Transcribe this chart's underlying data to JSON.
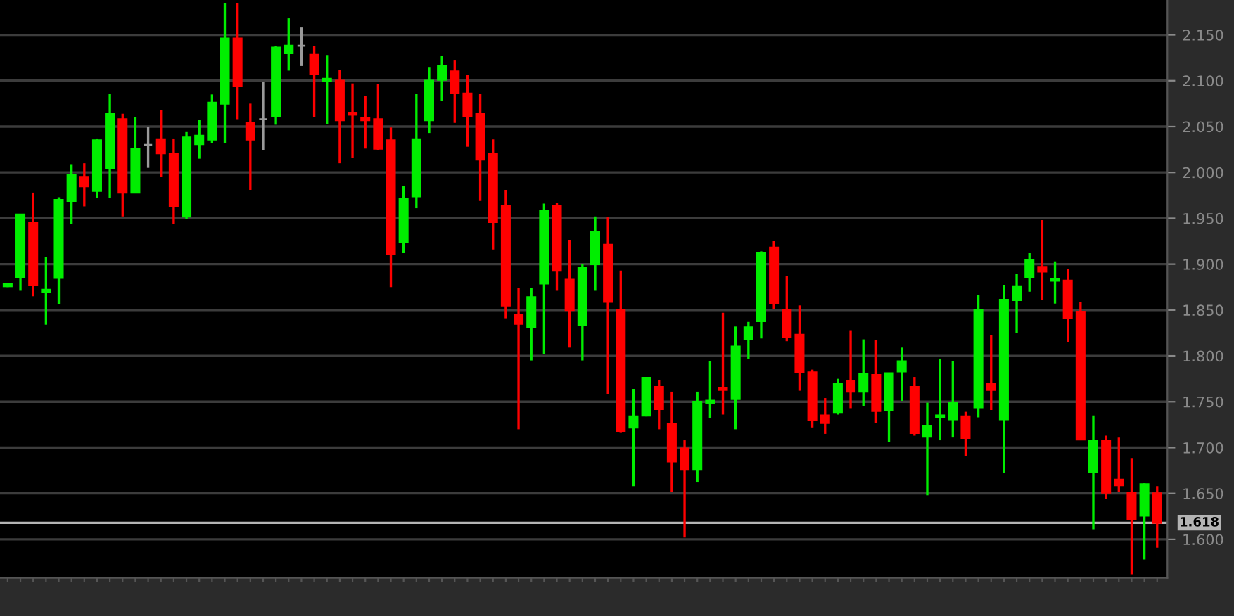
{
  "chart_data": {
    "type": "candlestick",
    "categories": [
      null,
      null,
      null,
      null,
      null,
      null,
      null,
      null,
      null,
      null,
      null,
      null,
      null,
      null,
      null,
      null,
      null,
      null,
      null,
      null,
      null,
      null,
      null,
      null,
      null,
      null,
      null,
      null,
      null,
      null,
      null,
      null,
      null,
      null,
      null,
      null,
      null,
      null,
      null,
      null,
      null,
      null,
      null,
      null,
      null,
      null,
      null,
      null,
      null,
      null,
      null,
      null,
      null,
      null,
      null,
      null,
      null,
      null,
      null,
      null,
      null,
      null,
      null,
      null,
      null,
      null,
      null,
      null,
      null,
      null,
      null,
      null,
      null,
      null,
      null,
      null,
      null,
      null,
      null,
      null,
      null,
      null,
      null,
      null,
      null,
      null,
      null,
      null,
      null,
      null,
      null
    ],
    "ohlc": [
      [
        1.876,
        1.879,
        1.875,
        1.878
      ],
      [
        1.886,
        1.954,
        1.871,
        1.954
      ],
      [
        1.945,
        1.978,
        1.865,
        1.877
      ],
      [
        1.87,
        1.908,
        1.834,
        1.872
      ],
      [
        1.885,
        1.973,
        1.856,
        1.97
      ],
      [
        1.969,
        2.009,
        1.944,
        1.997
      ],
      [
        1.995,
        2.01,
        1.963,
        1.985
      ],
      [
        1.98,
        2.037,
        1.972,
        2.035
      ],
      [
        2.005,
        2.086,
        1.972,
        2.064
      ],
      [
        2.058,
        2.064,
        1.952,
        1.978
      ],
      [
        1.978,
        2.06,
        1.978,
        2.026
      ],
      [
        2.03,
        2.05,
        2.005,
        2.03
      ],
      [
        2.036,
        2.068,
        1.995,
        2.021
      ],
      [
        2.02,
        2.037,
        1.944,
        1.963
      ],
      [
        1.952,
        2.044,
        1.949,
        2.038
      ],
      [
        2.031,
        2.057,
        2.015,
        2.04
      ],
      [
        2.036,
        2.085,
        2.032,
        2.076
      ],
      [
        2.075,
        2.185,
        2.032,
        2.146
      ],
      [
        2.146,
        2.185,
        2.058,
        2.094
      ],
      [
        2.054,
        2.075,
        1.981,
        2.036
      ],
      [
        2.058,
        2.099,
        2.024,
        2.058
      ],
      [
        2.061,
        2.138,
        2.052,
        2.136
      ],
      [
        2.13,
        2.168,
        2.111,
        2.138
      ],
      [
        2.138,
        2.158,
        2.116,
        2.138
      ],
      [
        2.128,
        2.138,
        2.06,
        2.107
      ],
      [
        2.1,
        2.128,
        2.053,
        2.102
      ],
      [
        2.1,
        2.112,
        2.01,
        2.057
      ],
      [
        2.065,
        2.097,
        2.016,
        2.063
      ],
      [
        2.059,
        2.083,
        2.026,
        2.057
      ],
      [
        2.058,
        2.096,
        2.024,
        2.026
      ],
      [
        2.035,
        2.049,
        1.875,
        1.911
      ],
      [
        1.924,
        1.985,
        1.912,
        1.971
      ],
      [
        1.974,
        2.086,
        1.961,
        2.036
      ],
      [
        2.057,
        2.115,
        2.043,
        2.1
      ],
      [
        2.101,
        2.127,
        2.078,
        2.116
      ],
      [
        2.11,
        2.122,
        2.054,
        2.087
      ],
      [
        2.086,
        2.106,
        2.028,
        2.061
      ],
      [
        2.064,
        2.086,
        1.969,
        2.014
      ],
      [
        2.02,
        2.036,
        1.916,
        1.946
      ],
      [
        1.963,
        1.981,
        1.841,
        1.855
      ],
      [
        1.845,
        1.874,
        1.72,
        1.835
      ],
      [
        1.831,
        1.874,
        1.795,
        1.864
      ],
      [
        1.879,
        1.966,
        1.802,
        1.958
      ],
      [
        1.963,
        1.967,
        1.871,
        1.893
      ],
      [
        1.883,
        1.926,
        1.809,
        1.85
      ],
      [
        1.834,
        1.9,
        1.795,
        1.896
      ],
      [
        1.9,
        1.952,
        1.871,
        1.935
      ],
      [
        1.921,
        1.951,
        1.758,
        1.859
      ],
      [
        1.85,
        1.893,
        1.716,
        1.718
      ],
      [
        1.722,
        1.764,
        1.658,
        1.734
      ],
      [
        1.735,
        1.777,
        1.734,
        1.776
      ],
      [
        1.766,
        1.774,
        1.72,
        1.742
      ],
      [
        1.726,
        1.761,
        1.652,
        1.685
      ],
      [
        1.699,
        1.708,
        1.602,
        1.676
      ],
      [
        1.676,
        1.761,
        1.662,
        1.75
      ],
      [
        1.749,
        1.794,
        1.732,
        1.751
      ],
      [
        1.765,
        1.847,
        1.736,
        1.763
      ],
      [
        1.753,
        1.832,
        1.72,
        1.81
      ],
      [
        1.818,
        1.837,
        1.797,
        1.831
      ],
      [
        1.838,
        1.914,
        1.819,
        1.912
      ],
      [
        1.918,
        1.925,
        1.851,
        1.857
      ],
      [
        1.85,
        1.887,
        1.816,
        1.821
      ],
      [
        1.823,
        1.855,
        1.762,
        1.782
      ],
      [
        1.782,
        1.785,
        1.722,
        1.73
      ],
      [
        1.735,
        1.754,
        1.715,
        1.727
      ],
      [
        1.738,
        1.775,
        1.736,
        1.769
      ],
      [
        1.773,
        1.828,
        1.743,
        1.761
      ],
      [
        1.761,
        1.818,
        1.745,
        1.78
      ],
      [
        1.779,
        1.817,
        1.727,
        1.74
      ],
      [
        1.741,
        1.781,
        1.706,
        1.781
      ],
      [
        1.783,
        1.809,
        1.751,
        1.794
      ],
      [
        1.766,
        1.777,
        1.713,
        1.716
      ],
      [
        1.712,
        1.749,
        1.648,
        1.723
      ],
      [
        1.733,
        1.797,
        1.708,
        1.735
      ],
      [
        1.731,
        1.794,
        1.711,
        1.749
      ],
      [
        1.734,
        1.739,
        1.691,
        1.71
      ],
      [
        1.744,
        1.866,
        1.733,
        1.85
      ],
      [
        1.769,
        1.823,
        1.741,
        1.763
      ],
      [
        1.731,
        1.877,
        1.672,
        1.861
      ],
      [
        1.861,
        1.889,
        1.825,
        1.875
      ],
      [
        1.886,
        1.912,
        1.87,
        1.904
      ],
      [
        1.897,
        1.948,
        1.861,
        1.892
      ],
      [
        1.882,
        1.903,
        1.857,
        1.884
      ],
      [
        1.882,
        1.895,
        1.815,
        1.841
      ],
      [
        1.848,
        1.859,
        1.709,
        1.709
      ],
      [
        1.673,
        1.735,
        1.611,
        1.707
      ],
      [
        1.707,
        1.713,
        1.644,
        1.651
      ],
      [
        1.665,
        1.711,
        1.652,
        1.659
      ],
      [
        1.651,
        1.688,
        1.562,
        1.622
      ],
      [
        1.626,
        1.661,
        1.578,
        1.66
      ],
      [
        1.65,
        1.658,
        1.591,
        1.618
      ]
    ],
    "colors": [
      "#00ee00",
      "#00ee00",
      "#ff0000",
      "#00ee00",
      "#00ee00",
      "#00ee00",
      "#ff0000",
      "#00ee00",
      "#00ee00",
      "#ff0000",
      "#00ee00",
      "#9a9a9a",
      "#ff0000",
      "#ff0000",
      "#00ee00",
      "#00ee00",
      "#00ee00",
      "#00ee00",
      "#ff0000",
      "#ff0000",
      "#9a9a9a",
      "#00ee00",
      "#00ee00",
      "#9a9a9a",
      "#ff0000",
      "#00ee00",
      "#ff0000",
      "#ff0000",
      "#ff0000",
      "#ff0000",
      "#ff0000",
      "#00ee00",
      "#00ee00",
      "#00ee00",
      "#00ee00",
      "#ff0000",
      "#ff0000",
      "#ff0000",
      "#ff0000",
      "#ff0000",
      "#ff0000",
      "#00ee00",
      "#00ee00",
      "#ff0000",
      "#ff0000",
      "#00ee00",
      "#00ee00",
      "#ff0000",
      "#ff0000",
      "#00ee00",
      "#00ee00",
      "#ff0000",
      "#ff0000",
      "#ff0000",
      "#00ee00",
      "#00ee00",
      "#ff0000",
      "#00ee00",
      "#00ee00",
      "#00ee00",
      "#ff0000",
      "#ff0000",
      "#ff0000",
      "#ff0000",
      "#ff0000",
      "#00ee00",
      "#ff0000",
      "#00ee00",
      "#ff0000",
      "#00ee00",
      "#00ee00",
      "#ff0000",
      "#00ee00",
      "#00ee00",
      "#00ee00",
      "#ff0000",
      "#00ee00",
      "#ff0000",
      "#00ee00",
      "#00ee00",
      "#00ee00",
      "#ff0000",
      "#00ee00",
      "#ff0000",
      "#ff0000",
      "#00ee00",
      "#ff0000",
      "#ff0000",
      "#ff0000",
      "#00ee00",
      "#ff0000"
    ],
    "ylim": [
      1.558,
      2.188
    ],
    "yticks": [
      {
        "value": 1.6,
        "label": "1.600"
      },
      {
        "value": 1.65,
        "label": "1.650"
      },
      {
        "value": 1.7,
        "label": "1.700"
      },
      {
        "value": 1.75,
        "label": "1.750"
      },
      {
        "value": 1.8,
        "label": "1.800"
      },
      {
        "value": 1.85,
        "label": "1.850"
      },
      {
        "value": 1.9,
        "label": "1.900"
      },
      {
        "value": 1.95,
        "label": "1.950"
      },
      {
        "value": 2.0,
        "label": "2.000"
      },
      {
        "value": 2.05,
        "label": "2.050"
      },
      {
        "value": 2.1,
        "label": "2.100"
      },
      {
        "value": 2.15,
        "label": "2.150"
      }
    ],
    "ref_lines": [
      {
        "axis": "y",
        "value": 1.618,
        "label": "1.618",
        "color": "#b4b4b4"
      }
    ],
    "grid": "y",
    "tick_labels": "y"
  }
}
